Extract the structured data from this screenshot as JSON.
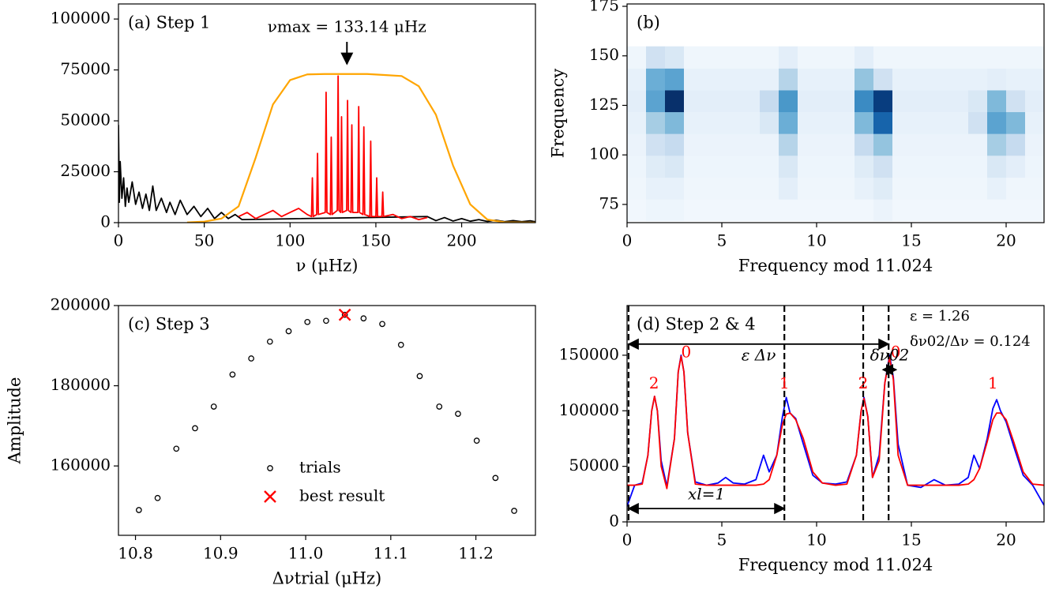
{
  "chart_data": [
    {
      "type": "line",
      "title": "(a) Step 1",
      "xlabel": "ν (μHz)",
      "xlim": [
        0,
        243
      ],
      "ylim": [
        0,
        107400
      ],
      "xticks": [
        0,
        50,
        100,
        150,
        200
      ],
      "yticks": [
        0,
        25000,
        50000,
        75000,
        100000
      ],
      "series": [
        {
          "color": "#000000",
          "x": [
            0,
            0.5,
            1,
            2,
            3,
            4,
            5,
            6,
            8,
            10,
            12,
            14,
            16,
            18,
            20,
            22,
            25,
            28,
            30,
            33,
            36,
            40,
            44,
            48,
            52,
            56,
            60,
            64,
            68,
            72,
            180,
            185,
            190,
            195,
            200,
            205,
            210,
            215,
            220,
            225,
            230,
            235,
            240,
            243
          ],
          "values": [
            48000,
            10000,
            30000,
            12000,
            22000,
            8000,
            17000,
            10000,
            20000,
            9000,
            15000,
            7000,
            14000,
            6000,
            18000,
            6000,
            12000,
            5000,
            10000,
            4000,
            11000,
            4000,
            8000,
            3000,
            7000,
            2000,
            5000,
            2000,
            4000,
            1500,
            3000,
            1000,
            2500,
            800,
            2000,
            700,
            1500,
            600,
            1200,
            500,
            1000,
            500,
            900,
            400
          ]
        },
        {
          "color": "#ff0000",
          "x": [
            70,
            75,
            80,
            85,
            90,
            95,
            100,
            105,
            110,
            112.5,
            113,
            113.5,
            115.5,
            116,
            116.5,
            120.5,
            121,
            121.5,
            123.5,
            124,
            124.5,
            127.5,
            128,
            128.5,
            129.5,
            130,
            130.5,
            133,
            133.5,
            134,
            135.5,
            136,
            136.5,
            139.5,
            140,
            140.5,
            142.5,
            143,
            143.5,
            146.5,
            147,
            147.5,
            150,
            150.5,
            151,
            153.5,
            154,
            154.5,
            160,
            165,
            170,
            175,
            180
          ],
          "values": [
            3000,
            5000,
            2000,
            4000,
            6000,
            3000,
            5000,
            7000,
            4000,
            3000,
            22000,
            3000,
            4000,
            34000,
            4000,
            5000,
            64000,
            5000,
            4000,
            42000,
            4000,
            6000,
            72000,
            6000,
            5000,
            52000,
            5000,
            6000,
            60000,
            6000,
            5000,
            48000,
            5000,
            5000,
            57000,
            5000,
            4000,
            47000,
            4000,
            3000,
            40000,
            3000,
            3000,
            22000,
            3000,
            3000,
            15000,
            3000,
            4000,
            2000,
            3000,
            1500,
            2500
          ]
        },
        {
          "color": "#ffa500",
          "x": [
            40,
            50,
            60,
            70,
            80,
            90,
            100,
            110,
            120,
            133,
            145,
            155,
            165,
            175,
            185,
            195,
            205,
            215,
            225,
            243
          ],
          "values": [
            100,
            500,
            2000,
            8000,
            32000,
            58000,
            70000,
            72800,
            73000,
            73000,
            73000,
            72500,
            72000,
            67000,
            53000,
            28000,
            9000,
            1500,
            200,
            0
          ]
        }
      ],
      "annotation": {
        "text": "νmax = 133.14 μHz",
        "x": 133.14
      }
    },
    {
      "type": "heatmap",
      "title": "(b)",
      "xlabel": "Frequency mod 11.024",
      "ylabel": "Frequency",
      "xlim": [
        0,
        22
      ],
      "ylim": [
        65.8,
        176.2
      ],
      "xticks": [
        0,
        5,
        10,
        15,
        20
      ],
      "yticks": [
        75,
        100,
        125,
        150,
        175
      ],
      "x_edges": [
        0,
        1,
        2,
        3,
        4,
        5,
        6,
        7,
        8,
        9,
        10,
        11,
        12,
        13,
        14,
        15,
        16,
        17,
        18,
        19,
        20,
        21,
        22
      ],
      "y_edges": [
        66.6,
        77.6,
        88.6,
        99.7,
        110.7,
        121.7,
        132.7,
        143.7,
        154.8
      ],
      "z": [
        [
          3,
          5,
          5,
          3,
          3,
          3,
          3,
          3,
          3,
          3,
          3,
          3,
          3,
          6,
          3,
          3,
          3,
          3,
          3,
          3,
          3,
          3
        ],
        [
          4,
          8,
          8,
          4,
          4,
          4,
          4,
          4,
          10,
          4,
          4,
          4,
          8,
          12,
          4,
          4,
          4,
          4,
          4,
          8,
          4,
          4
        ],
        [
          5,
          12,
          15,
          5,
          5,
          5,
          5,
          5,
          15,
          5,
          5,
          5,
          12,
          20,
          5,
          5,
          5,
          5,
          5,
          15,
          10,
          5
        ],
        [
          6,
          20,
          25,
          6,
          6,
          6,
          6,
          6,
          30,
          6,
          6,
          6,
          25,
          40,
          6,
          6,
          6,
          6,
          6,
          35,
          25,
          6
        ],
        [
          8,
          35,
          45,
          8,
          8,
          8,
          8,
          15,
          50,
          8,
          8,
          8,
          45,
          80,
          8,
          8,
          8,
          8,
          20,
          55,
          45,
          8
        ],
        [
          10,
          55,
          100,
          10,
          10,
          10,
          10,
          25,
          60,
          10,
          10,
          10,
          65,
          95,
          10,
          10,
          10,
          10,
          15,
          45,
          20,
          10
        ],
        [
          8,
          50,
          55,
          8,
          8,
          8,
          8,
          8,
          30,
          8,
          8,
          8,
          40,
          20,
          8,
          8,
          8,
          8,
          8,
          10,
          8,
          8
        ],
        [
          4,
          20,
          15,
          4,
          4,
          4,
          4,
          4,
          10,
          4,
          4,
          4,
          10,
          4,
          4,
          4,
          4,
          4,
          4,
          4,
          4,
          4
        ]
      ]
    },
    {
      "type": "scatter",
      "title": "(c) Step 3",
      "xlabel": "Δνtrial (μHz)",
      "ylabel": "Amplitude",
      "xlim": [
        10.78,
        11.27
      ],
      "ylim": [
        142700,
        200000
      ],
      "xticks": [
        10.8,
        10.9,
        {
          "value": 11,
          "label": "11.0"
        },
        11.1,
        11.2
      ],
      "yticks": [
        160000,
        180000,
        200000
      ],
      "legend": "lower center",
      "series": [
        {
          "name": "trials",
          "marker": "circle",
          "color": "#000000",
          "x": [
            10.804,
            10.826,
            10.848,
            10.87,
            10.892,
            10.914,
            10.936,
            10.958,
            10.98,
            11.002,
            11.024,
            11.046,
            11.068,
            11.09,
            11.112,
            11.134,
            11.157,
            11.179,
            11.201,
            11.223,
            11.245
          ],
          "values": [
            149000,
            152000,
            164300,
            169400,
            174800,
            182800,
            186800,
            191000,
            193600,
            195900,
            196200,
            197700,
            196800,
            195400,
            190200,
            182400,
            174800,
            173000,
            166300,
            157000,
            148800
          ]
        },
        {
          "name": "best result",
          "marker": "x",
          "color": "#ff0000",
          "x": [
            11.046
          ],
          "values": [
            197700
          ]
        }
      ]
    },
    {
      "type": "line",
      "title": "(d) Step 2 & 4",
      "xlabel": "Frequency mod 11.024",
      "xlim": [
        0,
        22
      ],
      "ylim": [
        0,
        194700
      ],
      "xticks": [
        0,
        5,
        10,
        15,
        20
      ],
      "yticks": [
        0,
        50000,
        100000,
        150000
      ],
      "x": [
        0,
        0.4,
        0.8,
        1.1,
        1.3,
        1.45,
        1.6,
        1.8,
        2.1,
        2.5,
        2.7,
        2.85,
        3.0,
        3.2,
        3.6,
        4.2,
        4.8,
        5.2,
        5.6,
        6.2,
        6.8,
        7.2,
        7.5,
        7.9,
        8.2,
        8.4,
        8.6,
        8.9,
        9.3,
        9.8,
        10.3,
        11.0,
        11.6,
        12.1,
        12.35,
        12.5,
        12.7,
        12.95,
        13.3,
        13.6,
        13.85,
        14.05,
        14.3,
        14.8,
        15.5,
        16.2,
        16.8,
        17.5,
        18.0,
        18.3,
        18.6,
        19.0,
        19.3,
        19.5,
        19.7,
        20.0,
        20.4,
        20.9,
        21.4,
        22.0
      ],
      "series": [
        {
          "color": "#0000ff",
          "values": [
            14000,
            33000,
            35000,
            60000,
            100000,
            113000,
            100000,
            55000,
            32000,
            75000,
            135000,
            150000,
            135000,
            80000,
            36000,
            33000,
            35000,
            40000,
            35000,
            34000,
            38000,
            60000,
            45000,
            60000,
            95000,
            112000,
            98000,
            93000,
            70000,
            42000,
            35000,
            34000,
            36000,
            60000,
            100000,
            112000,
            95000,
            40000,
            60000,
            125000,
            150000,
            130000,
            70000,
            33000,
            31000,
            38000,
            33000,
            34000,
            40000,
            60000,
            48000,
            75000,
            102000,
            110000,
            100000,
            90000,
            68000,
            42000,
            33000,
            15000
          ]
        },
        {
          "color": "#ff0000",
          "values": [
            33000,
            33000,
            34000,
            60000,
            100000,
            113000,
            100000,
            50000,
            30000,
            75000,
            135000,
            149000,
            135000,
            80000,
            34000,
            33000,
            33000,
            33000,
            33000,
            33000,
            33000,
            34000,
            38000,
            60000,
            88000,
            97000,
            98000,
            92000,
            75000,
            45000,
            35000,
            33000,
            34000,
            60000,
            100000,
            111000,
            95000,
            40000,
            55000,
            125000,
            148000,
            128000,
            60000,
            33000,
            33000,
            33000,
            33000,
            33000,
            34000,
            38000,
            48000,
            72000,
            92000,
            98000,
            98000,
            92000,
            72000,
            45000,
            34000,
            33000
          ]
        }
      ],
      "vlines": [
        0.08,
        8.3,
        12.46,
        13.8
      ],
      "peak_labels": [
        {
          "text": "2",
          "x": 1.42,
          "y": 124000
        },
        {
          "text": "0",
          "x": 3.12,
          "y": 152000
        },
        {
          "text": "1",
          "x": 8.3,
          "y": 124000
        },
        {
          "text": "2",
          "x": 12.46,
          "y": 124000
        },
        {
          "text": "0",
          "x": 14.17,
          "y": 152000
        },
        {
          "text": "1",
          "x": 19.3,
          "y": 124000
        }
      ],
      "arrows": [
        {
          "label": "ε Δν",
          "x": [
            0.08,
            13.8
          ],
          "y": 160000,
          "label_side": "below"
        },
        {
          "label": "δν02",
          "x": [
            13.5,
            14.2
          ],
          "y": 137000,
          "label_side": "above"
        },
        {
          "label": "xl=1",
          "x": [
            0.08,
            8.3
          ],
          "y": 12000,
          "label_side": "above"
        }
      ],
      "notes": [
        "ε = 1.26",
        "δν02/Δν = 0.124"
      ]
    }
  ]
}
